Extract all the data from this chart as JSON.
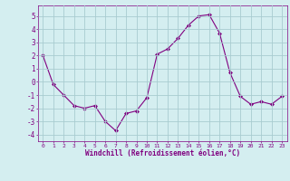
{
  "x": [
    0,
    1,
    2,
    3,
    4,
    5,
    6,
    7,
    8,
    9,
    10,
    11,
    12,
    13,
    14,
    15,
    16,
    17,
    18,
    19,
    20,
    21,
    22,
    23
  ],
  "y": [
    2.0,
    -0.2,
    -1.0,
    -1.8,
    -2.0,
    -1.8,
    -3.0,
    -3.7,
    -2.4,
    -2.2,
    -1.2,
    2.1,
    2.5,
    3.3,
    4.3,
    5.0,
    5.1,
    3.7,
    0.7,
    -1.1,
    -1.7,
    -1.5,
    -1.7,
    -1.1
  ],
  "line_color": "#800080",
  "marker": "D",
  "marker_size": 2.0,
  "bg_color": "#d4eef0",
  "grid_color": "#a8ccd0",
  "xlabel": "Windchill (Refroidissement éolien,°C)",
  "xlabel_color": "#800080",
  "tick_color": "#800080",
  "ylim": [
    -4.5,
    5.8
  ],
  "xlim": [
    -0.5,
    23.5
  ],
  "yticks": [
    -4,
    -3,
    -2,
    -1,
    0,
    1,
    2,
    3,
    4,
    5
  ],
  "xticks": [
    0,
    1,
    2,
    3,
    4,
    5,
    6,
    7,
    8,
    9,
    10,
    11,
    12,
    13,
    14,
    15,
    16,
    17,
    18,
    19,
    20,
    21,
    22,
    23
  ]
}
